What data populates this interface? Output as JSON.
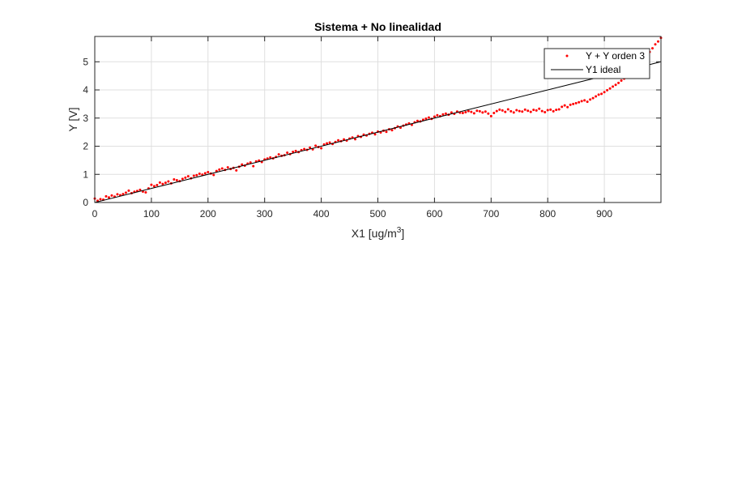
{
  "chart_data": {
    "type": "line",
    "title": "Sistema + No linealidad",
    "xlabel": "X1 [ug/m",
    "xlabel_sup": "3",
    "xlabel_end": "]",
    "ylabel": "Y [V]",
    "xlim": [
      0,
      1000
    ],
    "ylim": [
      0,
      5.9
    ],
    "xticks": [
      0,
      100,
      200,
      300,
      400,
      500,
      600,
      700,
      800,
      900
    ],
    "yticks": [
      0,
      1,
      2,
      3,
      4,
      5
    ],
    "grid": true,
    "legend_position": "top-right",
    "series": [
      {
        "name": "Y + Y orden 3",
        "style": "markers",
        "color": "#ff0000",
        "x": [
          0,
          5,
          10,
          15,
          20,
          25,
          30,
          35,
          40,
          45,
          50,
          55,
          60,
          65,
          70,
          75,
          80,
          85,
          90,
          95,
          100,
          105,
          110,
          115,
          120,
          125,
          130,
          135,
          140,
          145,
          150,
          155,
          160,
          165,
          170,
          175,
          180,
          185,
          190,
          195,
          200,
          205,
          210,
          215,
          220,
          225,
          230,
          235,
          240,
          245,
          250,
          255,
          260,
          265,
          270,
          275,
          280,
          285,
          290,
          295,
          300,
          305,
          310,
          315,
          320,
          325,
          330,
          335,
          340,
          345,
          350,
          355,
          360,
          365,
          370,
          375,
          380,
          385,
          390,
          395,
          400,
          405,
          410,
          415,
          420,
          425,
          430,
          435,
          440,
          445,
          450,
          455,
          460,
          465,
          470,
          475,
          480,
          485,
          490,
          495,
          500,
          505,
          510,
          515,
          520,
          525,
          530,
          535,
          540,
          545,
          550,
          555,
          560,
          565,
          570,
          575,
          580,
          585,
          590,
          595,
          600,
          605,
          610,
          615,
          620,
          625,
          630,
          635,
          640,
          645,
          650,
          655,
          660,
          665,
          670,
          675,
          680,
          685,
          690,
          695,
          700,
          705,
          710,
          715,
          720,
          725,
          730,
          735,
          740,
          745,
          750,
          755,
          760,
          765,
          770,
          775,
          780,
          785,
          790,
          795,
          800,
          805,
          810,
          815,
          820,
          825,
          830,
          835,
          840,
          845,
          850,
          855,
          860,
          865,
          870,
          875,
          880,
          885,
          890,
          895,
          900,
          905,
          910,
          915,
          920,
          925,
          930,
          935,
          940,
          945,
          950,
          955,
          960,
          965,
          970,
          975,
          980,
          985,
          990,
          995,
          1000
        ],
        "y": [
          0.14,
          0.06,
          0.12,
          0.1,
          0.22,
          0.18,
          0.25,
          0.21,
          0.29,
          0.26,
          0.3,
          0.35,
          0.42,
          0.33,
          0.38,
          0.41,
          0.45,
          0.39,
          0.36,
          0.5,
          0.63,
          0.58,
          0.62,
          0.71,
          0.66,
          0.7,
          0.75,
          0.68,
          0.82,
          0.79,
          0.76,
          0.84,
          0.88,
          0.93,
          0.86,
          0.95,
          0.97,
          1.02,
          0.99,
          1.04,
          1.08,
          1.03,
          0.98,
          1.12,
          1.17,
          1.21,
          1.16,
          1.25,
          1.19,
          1.23,
          1.14,
          1.27,
          1.35,
          1.31,
          1.38,
          1.42,
          1.29,
          1.46,
          1.49,
          1.44,
          1.53,
          1.56,
          1.6,
          1.57,
          1.62,
          1.71,
          1.66,
          1.68,
          1.77,
          1.72,
          1.8,
          1.83,
          1.79,
          1.86,
          1.9,
          1.87,
          1.95,
          1.89,
          2.02,
          1.97,
          1.93,
          2.06,
          2.1,
          2.13,
          2.08,
          2.15,
          2.21,
          2.18,
          2.24,
          2.2,
          2.27,
          2.31,
          2.25,
          2.36,
          2.33,
          2.41,
          2.38,
          2.44,
          2.48,
          2.42,
          2.52,
          2.49,
          2.55,
          2.51,
          2.6,
          2.57,
          2.64,
          2.7,
          2.66,
          2.73,
          2.77,
          2.81,
          2.76,
          2.85,
          2.9,
          2.88,
          2.94,
          2.98,
          3.02,
          2.97,
          3.05,
          3.1,
          3.07,
          3.13,
          3.16,
          3.12,
          3.2,
          3.15,
          3.23,
          3.19,
          3.18,
          3.21,
          3.25,
          3.22,
          3.17,
          3.26,
          3.24,
          3.2,
          3.23,
          3.16,
          3.07,
          3.18,
          3.25,
          3.3,
          3.27,
          3.22,
          3.31,
          3.24,
          3.2,
          3.28,
          3.25,
          3.23,
          3.3,
          3.26,
          3.22,
          3.29,
          3.27,
          3.33,
          3.25,
          3.21,
          3.28,
          3.3,
          3.24,
          3.29,
          3.31,
          3.4,
          3.45,
          3.39,
          3.47,
          3.5,
          3.53,
          3.56,
          3.6,
          3.63,
          3.58,
          3.66,
          3.71,
          3.77,
          3.83,
          3.86,
          3.92,
          3.99,
          4.05,
          4.12,
          4.18,
          4.25,
          4.33,
          4.4,
          4.47,
          4.58,
          4.66,
          4.76,
          4.86,
          4.98,
          5.1,
          5.23,
          5.35,
          5.48,
          5.62,
          5.72,
          5.85
        ]
      },
      {
        "name": "Y1 ideal",
        "style": "line",
        "color": "#000000",
        "x": [
          0,
          1000
        ],
        "y": [
          0,
          5
        ]
      }
    ]
  }
}
